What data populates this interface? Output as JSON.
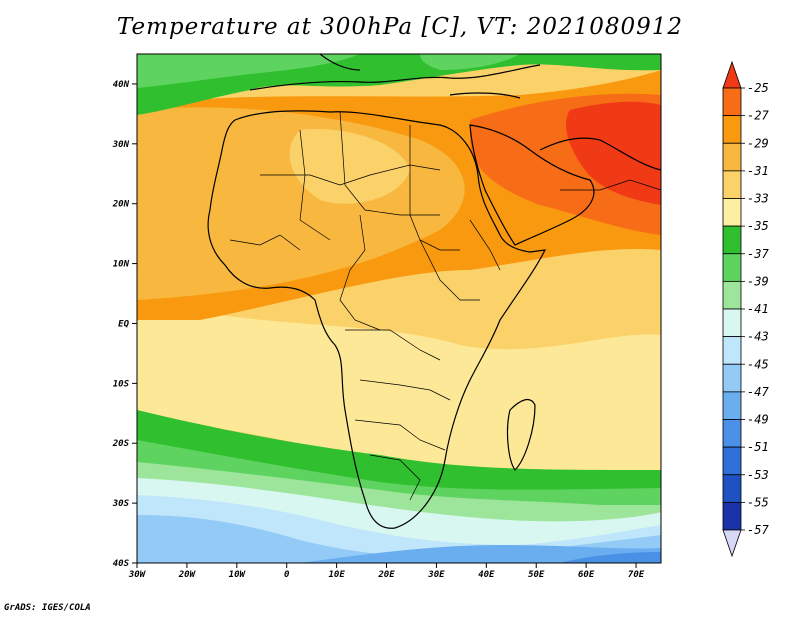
{
  "title": "Temperature at 300hPa [C], VT: 2021080912",
  "footer": "GrADS: IGES/COLA",
  "map": {
    "lat_labels": [
      "40N",
      "30N",
      "20N",
      "10N",
      "EQ",
      "10S",
      "20S",
      "30S",
      "40S"
    ],
    "lon_labels": [
      "30W",
      "20W",
      "10W",
      "0",
      "10E",
      "20E",
      "30E",
      "40E",
      "50E",
      "60E",
      "70E"
    ]
  },
  "legend": {
    "levels": [
      "-25",
      "-27",
      "-29",
      "-31",
      "-33",
      "-35",
      "-37",
      "-39",
      "-41",
      "-43",
      "-45",
      "-47",
      "-49",
      "-51",
      "-53",
      "-55",
      "-57"
    ],
    "colors": [
      "#f03a15",
      "#f76c16",
      "#f9990f",
      "#f8b840",
      "#fbd16a",
      "#fdeea2",
      "#2fbf2f",
      "#5fd35f",
      "#9ee59c",
      "#d8f7f1",
      "#bfe6fb",
      "#94caf6",
      "#6aaef0",
      "#4a90e6",
      "#2f6fd8",
      "#1e52c2",
      "#1a32a8",
      "#0b1580"
    ],
    "end_colors": {
      "top": "#f03a15",
      "bottom": "#d8d8f6"
    }
  }
}
